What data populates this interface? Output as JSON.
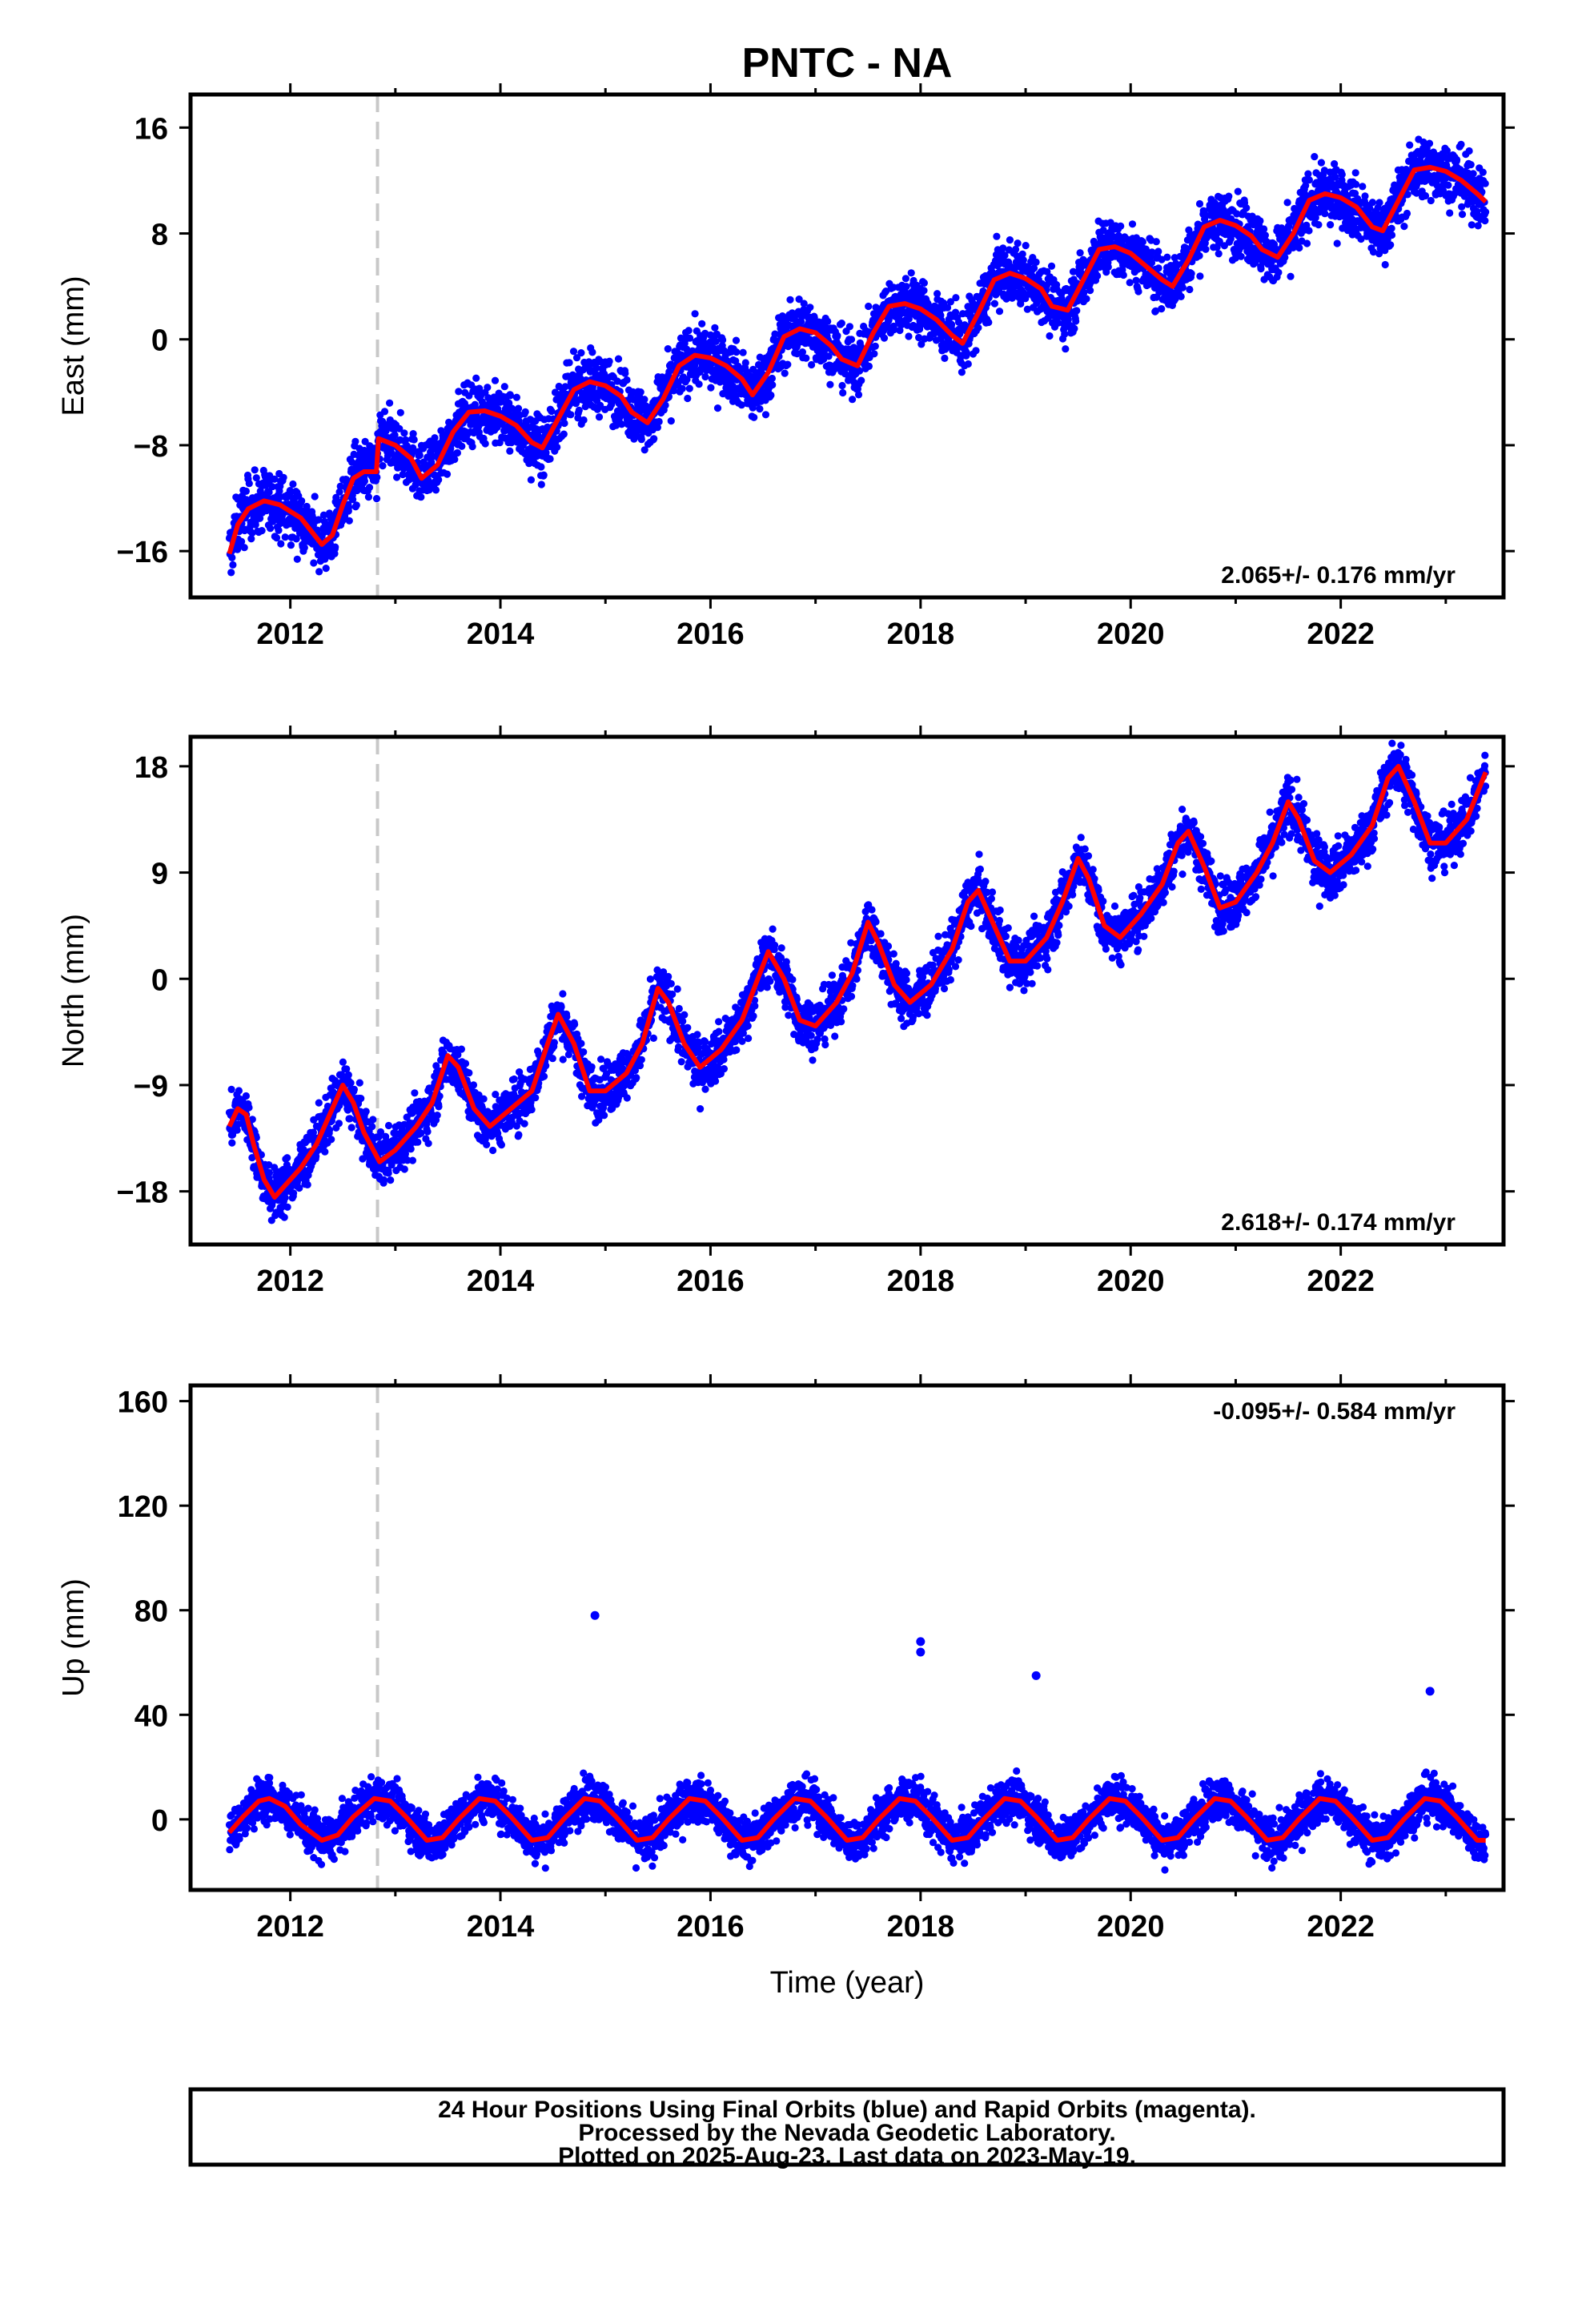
{
  "title": "PNTC - NA",
  "xlabel": "Time (year)",
  "caption": [
    "24 Hour Positions Using Final Orbits (blue) and Rapid Orbits (magenta).",
    "Processed by the Nevada Geodetic Laboratory.",
    "Plotted on 2025-Aug-23. Last data on 2023-May-19."
  ],
  "colors": {
    "points": "#0000ff",
    "fit": "#ff0000",
    "event_line": "#c8c8c8",
    "frame": "#000000"
  },
  "chart_data": [
    {
      "type": "scatter",
      "ylabel": "East (mm)",
      "rate_label": "2.065+/- 0.176 mm/yr",
      "xlim": [
        2011.05,
        2023.55
      ],
      "ylim": [
        -19.5,
        18.5
      ],
      "x_ticks": [
        2012,
        2014,
        2016,
        2018,
        2020,
        2022
      ],
      "x_tick_labels": [
        "2012",
        "2014",
        "2016",
        "2018",
        "2020",
        "2022"
      ],
      "y_ticks": [
        -16,
        -8,
        0,
        8,
        16
      ],
      "y_tick_labels": [
        "−16",
        "−8",
        "0",
        "8",
        "16"
      ],
      "event_line_x": 2012.83,
      "series": [
        {
          "color": "#ff0000",
          "x": [
            2011.42,
            2011.5,
            2011.6,
            2011.75,
            2011.9,
            2012.0,
            2012.1,
            2012.2,
            2012.3,
            2012.4,
            2012.5,
            2012.6,
            2012.7,
            2012.82,
            2012.84,
            2013.0,
            2013.15,
            2013.25,
            2013.4,
            2013.55,
            2013.7,
            2013.85,
            2014.0,
            2014.15,
            2014.3,
            2014.4,
            2014.55,
            2014.7,
            2014.85,
            2015.0,
            2015.15,
            2015.25,
            2015.4,
            2015.55,
            2015.7,
            2015.85,
            2016.0,
            2016.15,
            2016.3,
            2016.4,
            2016.55,
            2016.7,
            2016.85,
            2017.0,
            2017.15,
            2017.25,
            2017.4,
            2017.55,
            2017.7,
            2017.85,
            2018.0,
            2018.15,
            2018.3,
            2018.4,
            2018.55,
            2018.7,
            2018.85,
            2019.0,
            2019.15,
            2019.25,
            2019.4,
            2019.55,
            2019.7,
            2019.85,
            2020.0,
            2020.15,
            2020.3,
            2020.4,
            2020.55,
            2020.7,
            2020.85,
            2021.0,
            2021.15,
            2021.25,
            2021.4,
            2021.55,
            2021.7,
            2021.85,
            2022.0,
            2022.15,
            2022.3,
            2022.4,
            2022.55,
            2022.7,
            2022.85,
            2023.0,
            2023.15,
            2023.3,
            2023.38
          ],
          "y": [
            -16.2,
            -14.0,
            -12.8,
            -12.2,
            -12.5,
            -13.0,
            -13.5,
            -14.5,
            -15.5,
            -14.8,
            -12.5,
            -10.5,
            -10.0,
            -10.0,
            -7.5,
            -8.0,
            -9.0,
            -10.5,
            -9.5,
            -7.0,
            -5.5,
            -5.4,
            -5.8,
            -6.5,
            -7.8,
            -8.2,
            -6.0,
            -3.8,
            -3.2,
            -3.5,
            -4.3,
            -5.5,
            -6.3,
            -4.5,
            -2.0,
            -1.2,
            -1.4,
            -2.0,
            -3.0,
            -4.2,
            -2.5,
            0.2,
            0.8,
            0.5,
            -0.5,
            -1.5,
            -2.0,
            0.5,
            2.5,
            2.7,
            2.3,
            1.5,
            0.3,
            -0.3,
            2.0,
            4.5,
            5.0,
            4.6,
            3.8,
            2.5,
            2.2,
            4.5,
            6.8,
            7.0,
            6.5,
            5.5,
            4.5,
            4.0,
            6.0,
            8.5,
            9.0,
            8.6,
            7.8,
            6.8,
            6.2,
            8.0,
            10.5,
            11.0,
            10.7,
            10.0,
            8.5,
            8.2,
            10.5,
            12.8,
            13.0,
            12.7,
            12.0,
            11.0,
            10.4
          ]
        }
      ]
    },
    {
      "type": "scatter",
      "ylabel": "North (mm)",
      "rate_label": "2.618+/- 0.174 mm/yr",
      "xlim": [
        2011.05,
        2023.55
      ],
      "ylim": [
        -22.5,
        20.5
      ],
      "x_ticks": [
        2012,
        2014,
        2016,
        2018,
        2020,
        2022
      ],
      "x_tick_labels": [
        "2012",
        "2014",
        "2016",
        "2018",
        "2020",
        "2022"
      ],
      "y_ticks": [
        -18,
        -9,
        0,
        9,
        18
      ],
      "y_tick_labels": [
        "−18",
        "−9",
        "0",
        "9",
        "18"
      ],
      "event_line_x": 2012.83,
      "series": [
        {
          "color": "#ff0000",
          "x": [
            2011.42,
            2011.5,
            2011.58,
            2011.65,
            2011.75,
            2011.85,
            2011.95,
            2012.1,
            2012.25,
            2012.4,
            2012.5,
            2012.6,
            2012.7,
            2012.85,
            2013.0,
            2013.2,
            2013.35,
            2013.5,
            2013.6,
            2013.75,
            2013.9,
            2014.1,
            2014.3,
            2014.45,
            2014.55,
            2014.7,
            2014.85,
            2015.0,
            2015.2,
            2015.35,
            2015.5,
            2015.6,
            2015.75,
            2015.9,
            2016.1,
            2016.3,
            2016.45,
            2016.55,
            2016.7,
            2016.85,
            2017.0,
            2017.2,
            2017.35,
            2017.5,
            2017.6,
            2017.75,
            2017.9,
            2018.1,
            2018.3,
            2018.45,
            2018.55,
            2018.7,
            2018.85,
            2019.0,
            2019.2,
            2019.35,
            2019.5,
            2019.6,
            2019.75,
            2019.9,
            2020.1,
            2020.3,
            2020.45,
            2020.55,
            2020.7,
            2020.85,
            2021.0,
            2021.2,
            2021.35,
            2021.5,
            2021.6,
            2021.75,
            2021.9,
            2022.1,
            2022.3,
            2022.45,
            2022.55,
            2022.7,
            2022.85,
            2023.0,
            2023.2,
            2023.38
          ],
          "y": [
            -12.5,
            -11.0,
            -11.5,
            -14.0,
            -17.0,
            -18.5,
            -17.5,
            -16.0,
            -14.0,
            -11.0,
            -9.0,
            -10.5,
            -13.0,
            -15.5,
            -14.5,
            -12.5,
            -10.5,
            -6.5,
            -7.5,
            -11.0,
            -12.5,
            -11.0,
            -9.5,
            -5.5,
            -3.0,
            -5.5,
            -9.5,
            -9.5,
            -8.0,
            -5.5,
            -0.8,
            -2.0,
            -5.5,
            -7.5,
            -6.0,
            -3.5,
            0.0,
            2.3,
            0.0,
            -3.5,
            -4.0,
            -2.0,
            0.5,
            4.8,
            3.0,
            -0.5,
            -2.0,
            -0.5,
            2.5,
            6.5,
            7.5,
            4.5,
            1.5,
            1.5,
            3.5,
            6.5,
            10.2,
            8.5,
            4.5,
            3.5,
            5.5,
            8.0,
            11.5,
            12.5,
            9.5,
            6.0,
            6.5,
            9.0,
            11.5,
            15.0,
            13.5,
            10.0,
            9.0,
            10.5,
            13.0,
            17.0,
            18.0,
            15.0,
            11.5,
            11.5,
            13.5,
            17.5
          ]
        }
      ]
    },
    {
      "type": "scatter",
      "ylabel": "Up (mm)",
      "rate_label": "-0.095+/- 0.584 mm/yr",
      "xlim": [
        2011.05,
        2023.55
      ],
      "ylim": [
        -27,
        166
      ],
      "x_ticks": [
        2012,
        2014,
        2016,
        2018,
        2020,
        2022
      ],
      "x_tick_labels": [
        "2012",
        "2014",
        "2016",
        "2018",
        "2020",
        "2022"
      ],
      "y_ticks": [
        0,
        40,
        80,
        120,
        160
      ],
      "y_tick_labels": [
        "0",
        "40",
        "80",
        "120",
        "160"
      ],
      "event_line_x": 2012.83,
      "series": [
        {
          "color": "#ff0000",
          "x": [
            2011.42,
            2011.55,
            2011.7,
            2011.8,
            2011.95,
            2012.1,
            2012.3,
            2012.45,
            2012.6,
            2012.8,
            2012.95,
            2013.1,
            2013.3,
            2013.45,
            2013.6,
            2013.8,
            2013.95,
            2014.1,
            2014.3,
            2014.45,
            2014.6,
            2014.8,
            2014.95,
            2015.1,
            2015.3,
            2015.45,
            2015.6,
            2015.8,
            2015.95,
            2016.1,
            2016.3,
            2016.45,
            2016.6,
            2016.8,
            2016.95,
            2017.1,
            2017.3,
            2017.45,
            2017.6,
            2017.8,
            2017.95,
            2018.1,
            2018.3,
            2018.45,
            2018.6,
            2018.8,
            2018.95,
            2019.1,
            2019.3,
            2019.45,
            2019.6,
            2019.8,
            2019.95,
            2020.1,
            2020.3,
            2020.45,
            2020.6,
            2020.8,
            2020.95,
            2021.1,
            2021.3,
            2021.45,
            2021.6,
            2021.8,
            2021.95,
            2022.1,
            2022.3,
            2022.45,
            2022.6,
            2022.8,
            2022.95,
            2023.1,
            2023.3,
            2023.38
          ],
          "y": [
            -5,
            1,
            7,
            8,
            5,
            -2,
            -8,
            -6,
            1,
            8,
            7,
            1,
            -8,
            -7,
            0,
            8,
            7,
            1,
            -8,
            -7,
            0,
            8,
            7,
            1,
            -8,
            -7,
            0,
            8,
            7,
            1,
            -8,
            -7,
            0,
            8,
            7,
            1,
            -8,
            -7,
            0,
            8,
            7,
            1,
            -8,
            -7,
            0,
            8,
            7,
            1,
            -8,
            -7,
            0,
            8,
            7,
            1,
            -8,
            -7,
            0,
            8,
            7,
            1,
            -8,
            -7,
            0,
            8,
            7,
            1,
            -8,
            -7,
            0,
            8,
            7,
            1,
            -8,
            -8
          ]
        }
      ],
      "outliers": {
        "x": [
          2014.9,
          2018.0,
          2018.0,
          2019.1,
          2022.85
        ],
        "y": [
          78,
          68,
          64,
          55,
          49
        ]
      }
    }
  ]
}
